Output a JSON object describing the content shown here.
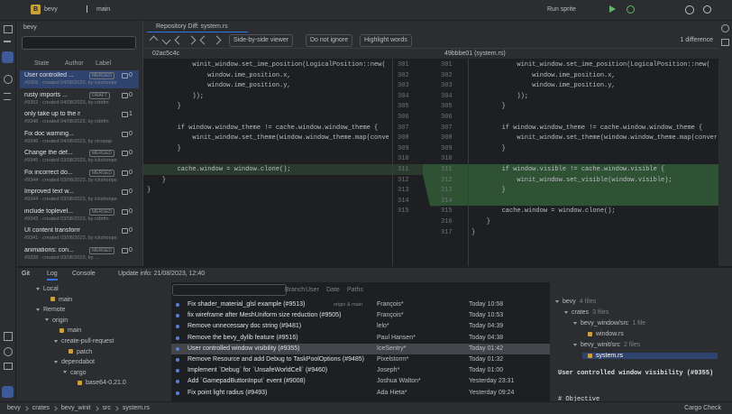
{
  "toolbar": {
    "project": "bevy",
    "branch": "main",
    "run_config": "Run sprite"
  },
  "pr_panel": {
    "tab": "bevy",
    "filters": [
      "State",
      "Author",
      "Label"
    ],
    "items": [
      {
        "title": "User controlled ...",
        "meta": "#9355 · created 04/08/2023, by ickshonpe",
        "badge": "MERGED",
        "comments": 0
      },
      {
        "title": "rusty imports ...",
        "meta": "#9352 · created 04/08/2023, by robtfm",
        "badge": "DRAFT",
        "comments": 0
      },
      {
        "title": "only take up to the m...",
        "meta": "#9348 · created 04/08/2023, by robtfm",
        "comments": 1
      },
      {
        "title": "Fix doc warning...",
        "meta": "#9346 · created 04/08/2023, by nicopap",
        "comments": 0
      },
      {
        "title": "Change the def...",
        "meta": "#9345 · created 03/08/2023, by ickshonpe",
        "badge": "MERGED",
        "comments": 0
      },
      {
        "title": "Fix incorrect do...",
        "meta": "#9344 · created 03/08/2023, by ickshonpe",
        "badge": "MERGED",
        "comments": 0
      },
      {
        "title": "Improved text w...",
        "meta": "#9344 · created 03/08/2023, by ickshonpe",
        "comments": 0
      },
      {
        "title": "include toplevel...",
        "meta": "#9343 · created 03/08/2023, by robtfm",
        "badge": "MERGED",
        "comments": 0
      },
      {
        "title": "UI content transform",
        "meta": "#9341 · created 03/08/2023, by ickshonpe",
        "comments": 0
      },
      {
        "title": "animations: con...",
        "meta": "#9338 · created 03/08/2023, by ...",
        "badge": "MERGED",
        "comments": 0
      }
    ]
  },
  "diff": {
    "tab": "Repository Diff: system.rs",
    "viewer": "Side-by-side viewer",
    "ignore": "Do not ignore",
    "highlight": "Highlight words",
    "differences": "1 difference",
    "left_rev": "02ac5c4c",
    "right_rev": "49bbbe01 (system.rs)",
    "left": [
      {
        "n": 301,
        "text": "            winit_window.set_ime_position(LogicalPosition::new("
      },
      {
        "n": 302,
        "text": "                window.ime_position.x,"
      },
      {
        "n": 303,
        "text": "                window.ime_position.y,"
      },
      {
        "n": 304,
        "text": "            ));"
      },
      {
        "n": 305,
        "text": "        }"
      },
      {
        "n": 306,
        "text": ""
      },
      {
        "n": 307,
        "text": "        if window.window_theme != cache.window.window_theme {"
      },
      {
        "n": 308,
        "text": "            winit_window.set_theme(window.window_theme.map(conve"
      },
      {
        "n": 309,
        "text": "        }"
      },
      {
        "n": 310,
        "text": ""
      },
      {
        "n": 311,
        "text": "        cache.window = window.clone();"
      },
      {
        "n": 312,
        "text": "    }"
      },
      {
        "n": 313,
        "text": "}"
      },
      {
        "n": 314,
        "text": ""
      },
      {
        "n": 315,
        "text": ""
      }
    ],
    "right": [
      {
        "n": 301,
        "text": "            winit_window.set_ime_position(LogicalPosition::new("
      },
      {
        "n": 302,
        "text": "                window.ime_position.x,"
      },
      {
        "n": 303,
        "text": "                window.ime_position.y,"
      },
      {
        "n": 304,
        "text": "            ));"
      },
      {
        "n": 305,
        "text": "        }"
      },
      {
        "n": 306,
        "text": ""
      },
      {
        "n": 307,
        "text": "        if window.window_theme != cache.window.window_theme {"
      },
      {
        "n": 308,
        "text": "            winit_window.set_theme(window.window_theme.map(convert_"
      },
      {
        "n": 309,
        "text": "        }"
      },
      {
        "n": 310,
        "text": ""
      },
      {
        "n": 311,
        "text": "        if window.visible != cache.window.visible {",
        "added": true
      },
      {
        "n": 312,
        "text": "            winit_window.set_visible(window.visible);",
        "added": true
      },
      {
        "n": 313,
        "text": "        }",
        "added": true
      },
      {
        "n": 314,
        "text": "",
        "added": true
      },
      {
        "n": 315,
        "text": "        cache.window = window.clone();"
      },
      {
        "n": 316,
        "text": "    }"
      },
      {
        "n": 317,
        "text": "}"
      }
    ]
  },
  "bottom": {
    "tool": "Git",
    "tabs": [
      "Log",
      "Console"
    ],
    "update_info": "Update info: 21/08/2023, 12:40",
    "log_filters": [
      "Branch",
      "User",
      "Date",
      "Paths"
    ],
    "branches": [
      {
        "label": "Local",
        "children": [
          {
            "label": "main"
          }
        ]
      },
      {
        "label": "Remote",
        "children": [
          {
            "label": "origin",
            "children": [
              {
                "label": "main"
              },
              {
                "label": "create-pull-request",
                "children": [
                  {
                    "label": "patch"
                  }
                ]
              },
              {
                "label": "dependabot",
                "children": [
                  {
                    "label": "cargo",
                    "children": [
                      {
                        "label": "base64-0.21.0"
                      }
                    ]
                  }
                ]
              }
            ]
          }
        ]
      }
    ],
    "commits": [
      {
        "message": "Fix shader_material_glsl example (#9513)",
        "refs": "origin & main",
        "author": "François*",
        "date": "Today 10:58"
      },
      {
        "message": "fix wireframe after MeshUniform size reduction (#9505)",
        "author": "François*",
        "date": "Today 10:53"
      },
      {
        "message": "Remove unnecessary doc string (#9481)",
        "author": "lelo*",
        "date": "Today 04:39"
      },
      {
        "message": "Remove the bevy_dylib feature (#9516)",
        "author": "Paul Hansen*",
        "date": "Today 04:38"
      },
      {
        "message": "User controlled window visibility (#9355)",
        "author": "IceSentry*",
        "date": "Today 01:42",
        "selected": true
      },
      {
        "message": "Remove Resource and add Debug to TaskPoolOptions (#9485)",
        "author": "Pixelstorm*",
        "date": "Today 01:32"
      },
      {
        "message": "Implement `Debug` for `UnsafeWorldCell` (#9460)",
        "author": "Joseph*",
        "date": "Today 01:00"
      },
      {
        "message": "Add `GamepadButtonInput` event (#9008)",
        "author": "Joshua Walton*",
        "date": "Yesterday 23:31"
      },
      {
        "message": "Fix point light radius (#9493)",
        "author": "Ada Hieta*",
        "date": "Yesterday 09:24"
      }
    ],
    "files": [
      {
        "label": "bevy",
        "count": "4 files",
        "children": [
          {
            "label": "crates",
            "count": "3 files",
            "children": [
              {
                "label": "bevy_window/src",
                "count": "1 file",
                "children": [
                  {
                    "label": "window.rs"
                  }
                ]
              },
              {
                "label": "bevy_winit/src",
                "count": "2 files",
                "children": [
                  {
                    "label": "system.rs",
                    "selected": true
                  }
                ]
              }
            ]
          }
        ]
      }
    ],
    "description": "User controlled window visibility (#9355)",
    "description_more": "# Objective"
  },
  "status": {
    "breadcrumbs": [
      "bevy",
      "crates",
      "bevy_winit",
      "src",
      "system.rs"
    ],
    "task": "Cargo Check"
  }
}
